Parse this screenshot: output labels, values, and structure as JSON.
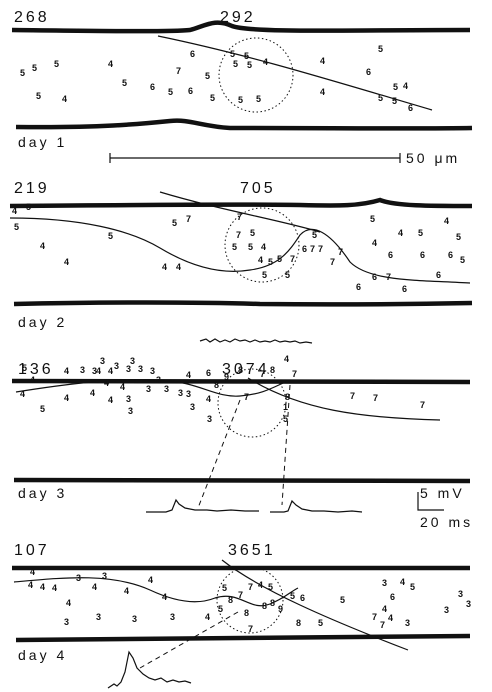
{
  "panels": [
    {
      "left_count": 268,
      "right_count": 292,
      "day": "day 1",
      "digits": [
        5,
        5,
        5,
        5,
        4,
        4,
        5,
        6,
        5,
        7,
        6,
        6,
        5,
        5,
        5,
        5,
        5,
        5,
        4,
        5,
        5,
        4,
        4,
        6,
        5,
        5,
        5,
        5,
        4,
        6
      ]
    },
    {
      "left_count": 219,
      "right_count": 705,
      "day": "day 2",
      "digits": [
        4,
        5,
        4,
        4,
        5,
        5,
        4,
        4,
        5,
        7,
        7,
        7,
        5,
        5,
        5,
        4,
        4,
        5,
        5,
        7,
        6,
        7,
        7,
        5,
        5,
        5,
        7,
        7,
        5,
        4,
        4,
        5,
        6,
        6,
        4,
        5,
        6,
        5,
        6,
        6,
        7,
        6,
        6
      ]
    },
    {
      "left_count": 136,
      "right_count": 3074,
      "day": "day 3",
      "digits": [
        5,
        4,
        4,
        5,
        4,
        4,
        3,
        3,
        3,
        4,
        4,
        3,
        3,
        3,
        3,
        3,
        4,
        4,
        4,
        4,
        3,
        3,
        3,
        3,
        3,
        3,
        3,
        3,
        4,
        6,
        4,
        8,
        9,
        8,
        7,
        7,
        8,
        4,
        7,
        8,
        1,
        5,
        3,
        7,
        7,
        7
      ]
    },
    {
      "left_count": 107,
      "right_count": 3651,
      "day": "day 4",
      "digits": [
        4,
        4,
        4,
        4,
        3,
        3,
        4,
        4,
        3,
        4,
        4,
        4,
        3,
        3,
        3,
        4,
        7,
        5,
        8,
        7,
        7,
        4,
        5,
        5,
        8,
        8,
        9,
        8,
        5,
        6,
        5,
        8,
        5,
        7,
        4,
        6,
        4,
        3,
        4,
        7,
        3,
        3,
        3,
        3,
        5
      ]
    }
  ],
  "scale_bars": {
    "length": "50 μm",
    "voltage": "5 mV",
    "time": "20 ms"
  }
}
